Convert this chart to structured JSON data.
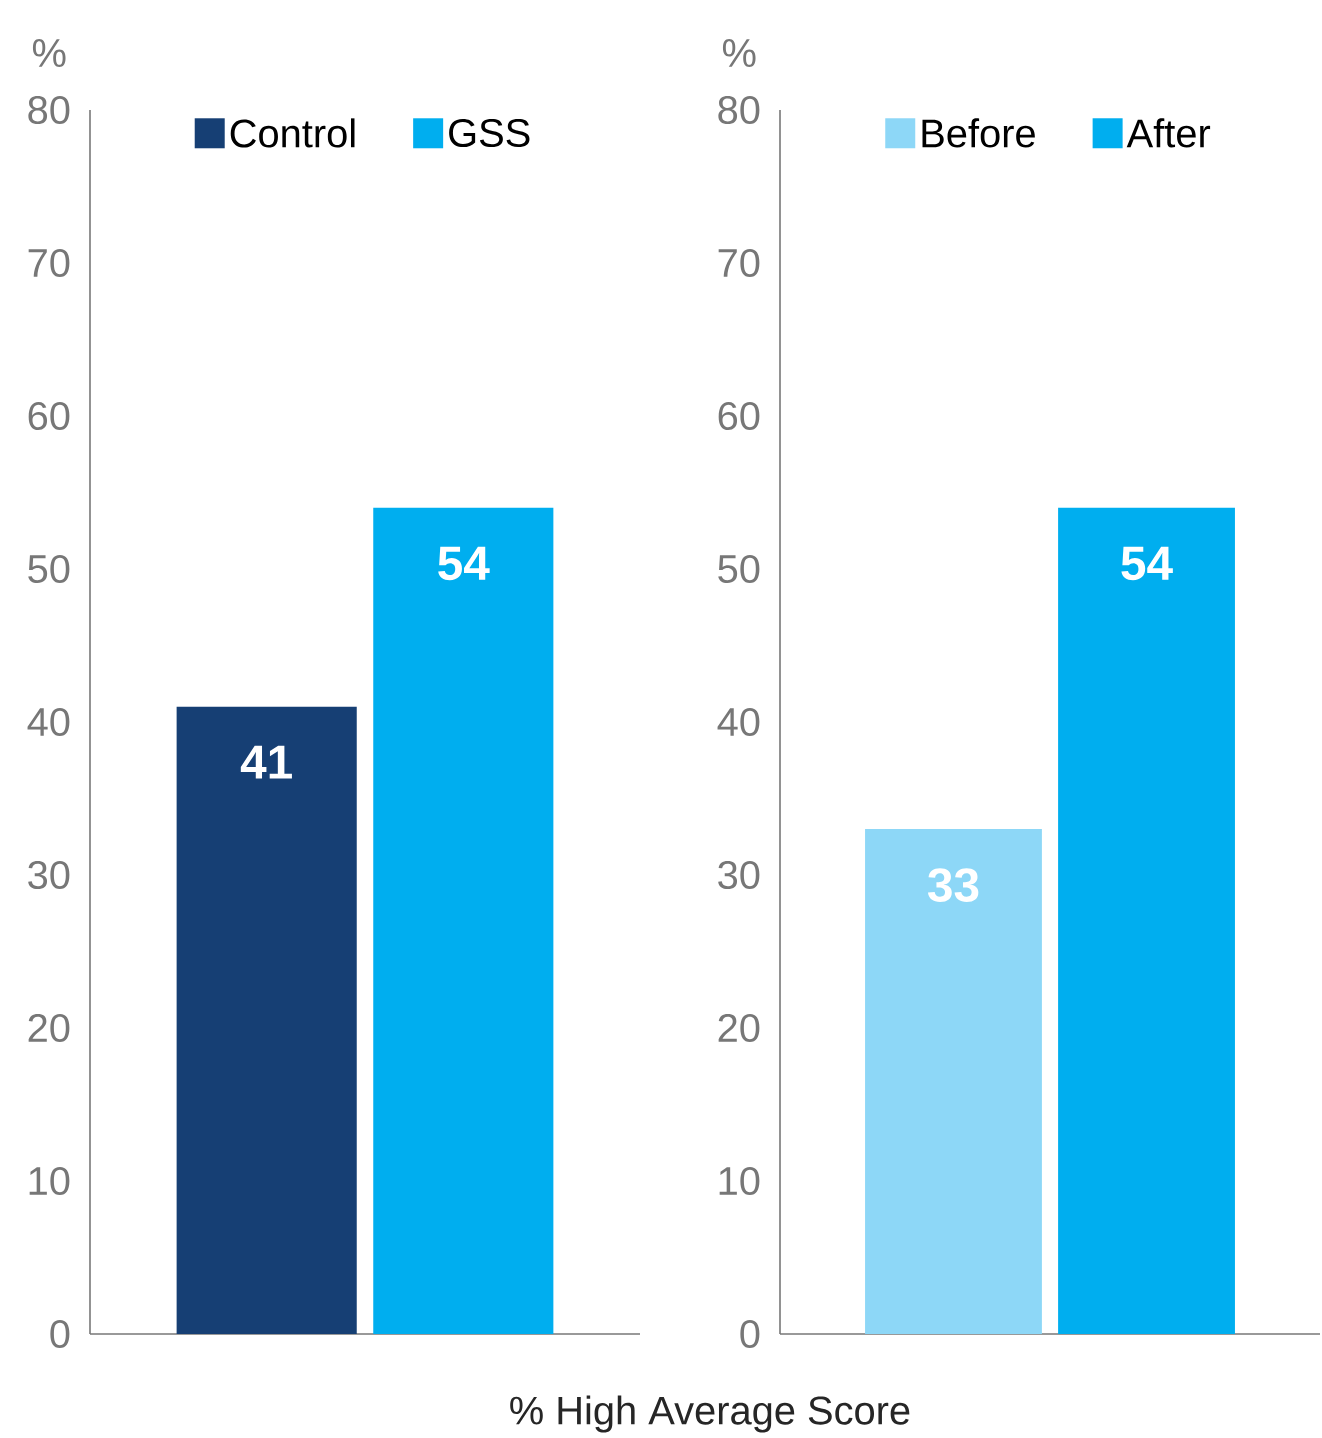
{
  "chart_data": [
    {
      "type": "bar",
      "categories": [
        null
      ],
      "ylabel": "%",
      "xlabel": "% High Average Score",
      "ylim": [
        0,
        80
      ],
      "yticks": [
        0,
        10,
        20,
        30,
        40,
        50,
        60,
        70,
        80
      ],
      "legend": "top",
      "data_labels": true,
      "series": [
        {
          "name": "Control",
          "color": "#163f74",
          "values": [
            41
          ]
        },
        {
          "name": "GSS",
          "color": "#00aeef",
          "values": [
            54
          ]
        }
      ]
    },
    {
      "type": "bar",
      "categories": [
        null
      ],
      "ylabel": "%",
      "ylim": [
        0,
        80
      ],
      "yticks": [
        0,
        10,
        20,
        30,
        40,
        50,
        60,
        70,
        80
      ],
      "legend": "top",
      "data_labels": true,
      "series": [
        {
          "name": "Before",
          "color": "#8dd7f7",
          "values": [
            33
          ]
        },
        {
          "name": "After",
          "color": "#00aeef",
          "values": [
            54
          ]
        }
      ]
    }
  ]
}
